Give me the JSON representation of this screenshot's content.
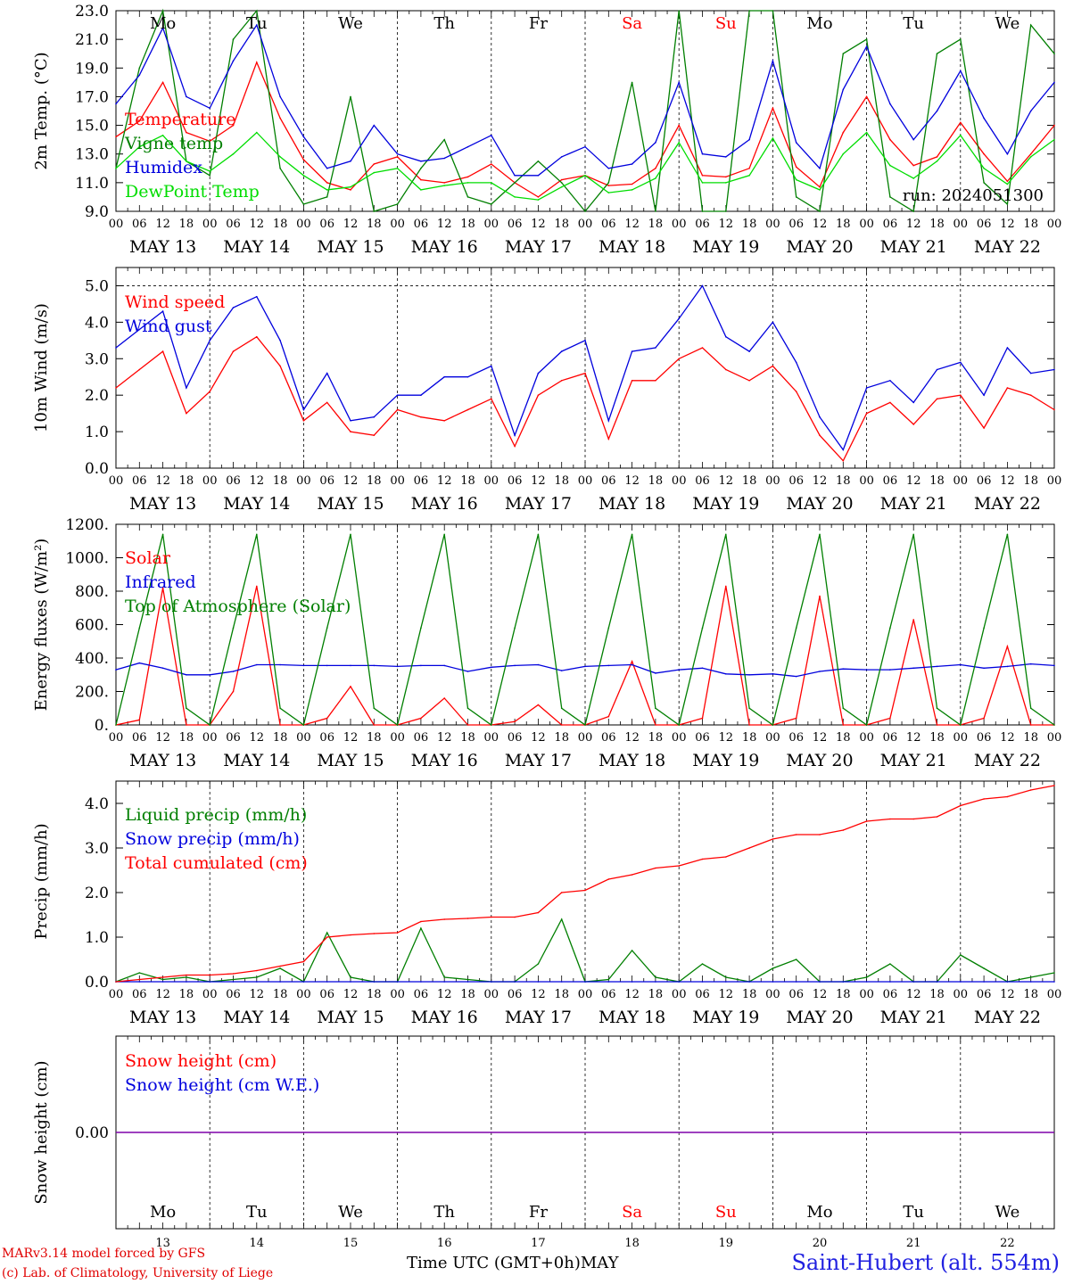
{
  "days": [
    {
      "dow": "Mo",
      "date": "MAY 13",
      "num": "13",
      "weekend": false
    },
    {
      "dow": "Tu",
      "date": "MAY 14",
      "num": "14",
      "weekend": false
    },
    {
      "dow": "We",
      "date": "MAY 15",
      "num": "15",
      "weekend": false
    },
    {
      "dow": "Th",
      "date": "MAY 16",
      "num": "16",
      "weekend": false
    },
    {
      "dow": "Fr",
      "date": "MAY 17",
      "num": "17",
      "weekend": false
    },
    {
      "dow": "Sa",
      "date": "MAY 18",
      "num": "18",
      "weekend": true
    },
    {
      "dow": "Su",
      "date": "MAY 19",
      "num": "19",
      "weekend": true
    },
    {
      "dow": "Mo",
      "date": "MAY 20",
      "num": "20",
      "weekend": false
    },
    {
      "dow": "Tu",
      "date": "MAY 21",
      "num": "21",
      "weekend": false
    },
    {
      "dow": "We",
      "date": "MAY 22",
      "num": "22",
      "weekend": false
    }
  ],
  "hour_ticks": [
    "00",
    "06",
    "12",
    "18"
  ],
  "final_hour": "00",
  "colors": {
    "red": "#ff0000",
    "blue": "#0000dd",
    "green": "#007f00",
    "lightgreen": "#00dd00",
    "weekend": "#ff0000",
    "snow": "#7f00aa"
  },
  "footer": {
    "model": "MARv3.14 model forced by GFS",
    "credit": "(c) Lab. of Climatology, University of Liege",
    "axis": "Time UTC (GMT+0h)",
    "month": "MAY",
    "station": "Saint-Hubert (alt. 554m)"
  },
  "chart_data": [
    {
      "type": "line",
      "ylabel": "2m Temp. (°C)",
      "ylim": [
        9.0,
        23.0
      ],
      "yticks": [
        "9.0",
        "11.0",
        "13.0",
        "15.0",
        "17.0",
        "19.0",
        "21.0",
        "23.0"
      ],
      "annotation": "run: 2024051300",
      "show_weekdays": true,
      "x_hours": [
        0,
        6,
        12,
        18,
        24,
        30,
        36,
        42,
        48,
        54,
        60,
        66,
        72,
        78,
        84,
        90,
        96,
        102,
        108,
        114,
        120,
        126,
        132,
        138,
        144,
        150,
        156,
        162,
        168,
        174,
        180,
        186,
        192,
        198,
        204,
        210,
        216,
        222,
        228,
        234,
        240
      ],
      "series": [
        {
          "name": "Temperature",
          "color": "red",
          "values": [
            14.2,
            15.3,
            18.0,
            14.5,
            13.9,
            15.0,
            19.4,
            15.5,
            12.6,
            11.0,
            10.5,
            12.3,
            12.8,
            11.2,
            11.0,
            11.4,
            12.3,
            11.0,
            10.0,
            11.2,
            11.5,
            10.8,
            10.9,
            12.0,
            15.0,
            11.5,
            11.4,
            12.0,
            16.2,
            12.1,
            10.7,
            14.5,
            17.0,
            14.0,
            12.2,
            12.8,
            15.2,
            13.0,
            11.1,
            13.0,
            15.0
          ]
        },
        {
          "name": "Vigne temp",
          "color": "green",
          "values": [
            12.0,
            19.0,
            23.0,
            12.5,
            11.5,
            21.0,
            23.0,
            12.0,
            9.5,
            10.0,
            17.0,
            9.0,
            9.5,
            12.0,
            14.0,
            10.0,
            9.5,
            11.0,
            12.5,
            11.0,
            9.0,
            11.0,
            18.0,
            9.0,
            23.0,
            9.0,
            9.0,
            23.0,
            23.0,
            10.0,
            9.0,
            20.0,
            21.0,
            10.0,
            9.0,
            20.0,
            21.0,
            11.0,
            9.5,
            22.0,
            20.0
          ]
        },
        {
          "name": "Humidex",
          "color": "blue",
          "values": [
            16.5,
            18.5,
            21.8,
            17.0,
            16.2,
            19.5,
            22.0,
            17.0,
            14.2,
            12.0,
            12.5,
            15.0,
            13.0,
            12.5,
            12.7,
            13.5,
            14.3,
            11.5,
            11.5,
            12.8,
            13.5,
            12.0,
            12.3,
            13.8,
            18.0,
            13.0,
            12.8,
            14.0,
            19.5,
            13.8,
            12.0,
            17.5,
            20.5,
            16.5,
            14.0,
            16.0,
            18.8,
            15.5,
            13.0,
            16.0,
            18.0
          ]
        },
        {
          "name": "DewPoint Temp",
          "color": "lightgreen",
          "values": [
            12.0,
            13.5,
            14.3,
            12.5,
            11.8,
            13.0,
            14.5,
            12.8,
            11.5,
            10.5,
            10.7,
            11.7,
            12.0,
            10.5,
            10.8,
            11.0,
            11.0,
            10.0,
            9.8,
            10.7,
            11.5,
            10.3,
            10.5,
            11.3,
            13.8,
            11.0,
            11.0,
            11.5,
            14.1,
            11.2,
            10.5,
            13.0,
            14.5,
            12.2,
            11.3,
            12.5,
            14.3,
            12.0,
            10.9,
            12.8,
            14.0
          ]
        }
      ]
    },
    {
      "type": "line",
      "ylabel": "10m Wind (m/s)",
      "ylim": [
        0.0,
        5.5
      ],
      "yticks": [
        "0.0",
        "1.0",
        "2.0",
        "3.0",
        "4.0",
        "5.0"
      ],
      "dashed_y": 5.0,
      "show_weekdays": false,
      "x_hours": [
        0,
        6,
        12,
        18,
        24,
        30,
        36,
        42,
        48,
        54,
        60,
        66,
        72,
        78,
        84,
        90,
        96,
        102,
        108,
        114,
        120,
        126,
        132,
        138,
        144,
        150,
        156,
        162,
        168,
        174,
        180,
        186,
        192,
        198,
        204,
        210,
        216,
        222,
        228,
        234,
        240
      ],
      "series": [
        {
          "name": "Wind speed",
          "color": "red",
          "values": [
            2.2,
            2.7,
            3.2,
            1.5,
            2.1,
            3.2,
            3.6,
            2.8,
            1.3,
            1.8,
            1.0,
            0.9,
            1.6,
            1.4,
            1.3,
            1.6,
            1.9,
            0.6,
            2.0,
            2.4,
            2.6,
            0.8,
            2.4,
            2.4,
            3.0,
            3.3,
            2.7,
            2.4,
            2.8,
            2.1,
            0.9,
            0.2,
            1.5,
            1.8,
            1.2,
            1.9,
            2.0,
            1.1,
            2.2,
            2.0,
            1.6
          ]
        },
        {
          "name": "Wind gust",
          "color": "blue",
          "values": [
            3.3,
            3.8,
            4.3,
            2.2,
            3.5,
            4.4,
            4.7,
            3.5,
            1.6,
            2.6,
            1.3,
            1.4,
            2.0,
            2.0,
            2.5,
            2.5,
            2.8,
            0.9,
            2.6,
            3.2,
            3.5,
            1.3,
            3.2,
            3.3,
            4.1,
            5.0,
            3.6,
            3.2,
            4.0,
            2.9,
            1.4,
            0.5,
            2.2,
            2.4,
            1.8,
            2.7,
            2.9,
            2.0,
            3.3,
            2.6,
            2.7
          ]
        }
      ]
    },
    {
      "type": "line",
      "ylabel": "Energy fluxes (W/m²)",
      "ylim": [
        0,
        1200
      ],
      "yticks": [
        "0.",
        "200.",
        "400.",
        "600.",
        "800.",
        "1000.",
        "1200."
      ],
      "show_weekdays": false,
      "x_hours": [
        0,
        6,
        12,
        18,
        24,
        30,
        36,
        42,
        48,
        54,
        60,
        66,
        72,
        78,
        84,
        90,
        96,
        102,
        108,
        114,
        120,
        126,
        132,
        138,
        144,
        150,
        156,
        162,
        168,
        174,
        180,
        186,
        192,
        198,
        204,
        210,
        216,
        222,
        228,
        234,
        240
      ],
      "series": [
        {
          "name": "Solar",
          "color": "red",
          "values": [
            0,
            30,
            820,
            0,
            0,
            200,
            830,
            0,
            0,
            40,
            230,
            0,
            0,
            40,
            160,
            0,
            0,
            20,
            120,
            0,
            0,
            50,
            380,
            0,
            0,
            40,
            830,
            0,
            0,
            40,
            770,
            0,
            0,
            40,
            630,
            0,
            0,
            40,
            470,
            0,
            0
          ]
        },
        {
          "name": "Infrared",
          "color": "blue",
          "values": [
            330,
            370,
            340,
            300,
            300,
            320,
            360,
            360,
            355,
            355,
            355,
            355,
            350,
            355,
            355,
            320,
            345,
            355,
            360,
            325,
            350,
            355,
            360,
            310,
            330,
            340,
            305,
            300,
            305,
            290,
            320,
            335,
            330,
            330,
            340,
            350,
            360,
            340,
            350,
            365,
            355
          ]
        },
        {
          "name": "Top of Atmosphere (Solar)",
          "color": "green",
          "values": [
            0,
            580,
            1140,
            100,
            0,
            580,
            1140,
            100,
            0,
            580,
            1140,
            100,
            0,
            580,
            1140,
            100,
            0,
            580,
            1140,
            100,
            0,
            580,
            1140,
            100,
            0,
            580,
            1140,
            100,
            0,
            580,
            1140,
            100,
            0,
            580,
            1140,
            100,
            0,
            580,
            1140,
            100,
            0
          ]
        }
      ]
    },
    {
      "type": "line",
      "ylabel": "Precip (mm/h)",
      "ylim": [
        0.0,
        4.5
      ],
      "yticks": [
        "0.0",
        "1.0",
        "2.0",
        "3.0",
        "4.0"
      ],
      "show_weekdays": false,
      "x_hours": [
        0,
        6,
        12,
        18,
        24,
        30,
        36,
        42,
        48,
        54,
        60,
        66,
        72,
        78,
        84,
        90,
        96,
        102,
        108,
        114,
        120,
        126,
        132,
        138,
        144,
        150,
        156,
        162,
        168,
        174,
        180,
        186,
        192,
        198,
        204,
        210,
        216,
        222,
        228,
        234,
        240
      ],
      "series": [
        {
          "name": "Liquid precip (mm/h)",
          "color": "green",
          "values": [
            0.0,
            0.2,
            0.05,
            0.1,
            0.0,
            0.05,
            0.1,
            0.3,
            0.0,
            1.1,
            0.1,
            0.0,
            0.0,
            1.2,
            0.1,
            0.05,
            0.0,
            0.0,
            0.4,
            1.4,
            0.0,
            0.05,
            0.7,
            0.1,
            0.0,
            0.4,
            0.1,
            0.0,
            0.3,
            0.5,
            0.0,
            0.0,
            0.1,
            0.4,
            0.0,
            0.0,
            0.6,
            0.3,
            0.0,
            0.1,
            0.2
          ]
        },
        {
          "name": "Snow precip (mm/h)",
          "color": "blue",
          "values": [
            0,
            0,
            0,
            0,
            0,
            0,
            0,
            0,
            0,
            0,
            0,
            0,
            0,
            0,
            0,
            0,
            0,
            0,
            0,
            0,
            0,
            0,
            0,
            0,
            0,
            0,
            0,
            0,
            0,
            0,
            0,
            0,
            0,
            0,
            0,
            0,
            0,
            0,
            0,
            0,
            0
          ]
        },
        {
          "name": "Total cumulated (cm)",
          "color": "red",
          "values": [
            0.0,
            0.05,
            0.1,
            0.15,
            0.15,
            0.18,
            0.25,
            0.35,
            0.45,
            1.0,
            1.05,
            1.08,
            1.1,
            1.35,
            1.4,
            1.42,
            1.45,
            1.45,
            1.55,
            2.0,
            2.05,
            2.3,
            2.4,
            2.55,
            2.6,
            2.75,
            2.8,
            3.0,
            3.2,
            3.3,
            3.3,
            3.4,
            3.6,
            3.65,
            3.65,
            3.7,
            3.95,
            4.1,
            4.15,
            4.3,
            4.4
          ]
        }
      ]
    },
    {
      "type": "line",
      "ylabel": "Snow height (cm)",
      "ylim": [
        -1,
        1
      ],
      "yticks": [
        "0.00"
      ],
      "show_weekdays": true,
      "weekday_labels_inside": true,
      "x_hours": [
        0,
        240
      ],
      "series": [
        {
          "name": "Snow height (cm)",
          "color": "red",
          "values": [
            0.0,
            0.0
          ],
          "hidden": true
        },
        {
          "name": "Snow height (cm W.E.)",
          "color": "blue",
          "values": [
            0.0,
            0.0
          ],
          "hidden": true
        }
      ]
    }
  ]
}
